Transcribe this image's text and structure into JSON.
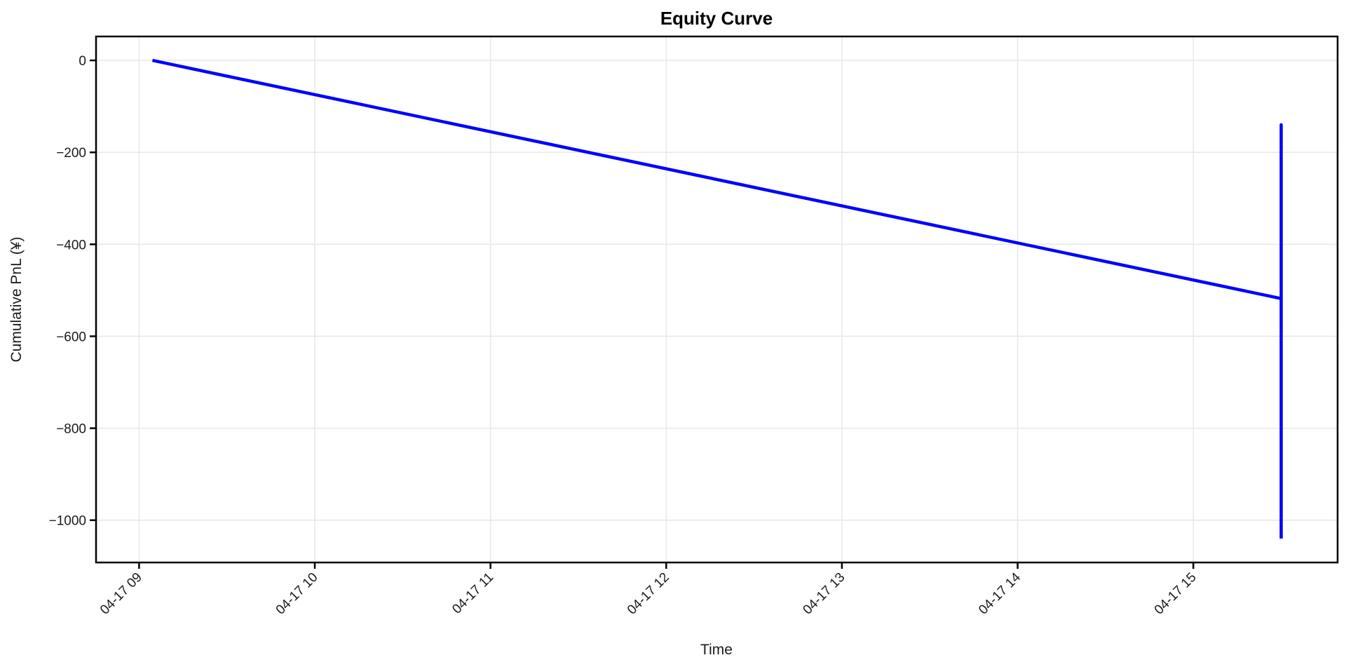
{
  "chart_data": {
    "type": "line",
    "title": "Equity Curve",
    "xlabel": "Time",
    "ylabel": "Cumulative PnL (¥)",
    "grid": true,
    "legend_position": "none",
    "x_tick_rotation_deg": 45,
    "xlim_hours": [
      8.755,
      15.821
    ],
    "ylim": [
      -1092,
      52
    ],
    "x_ticks": [
      {
        "hour": 9,
        "label": "04-17 09"
      },
      {
        "hour": 10,
        "label": "04-17 10"
      },
      {
        "hour": 11,
        "label": "04-17 11"
      },
      {
        "hour": 12,
        "label": "04-17 12"
      },
      {
        "hour": 13,
        "label": "04-17 13"
      },
      {
        "hour": 14,
        "label": "04-17 14"
      },
      {
        "hour": 15,
        "label": "04-17 15"
      }
    ],
    "y_ticks": [
      {
        "value": 0,
        "label": "0"
      },
      {
        "value": -200,
        "label": "−200"
      },
      {
        "value": -400,
        "label": "−400"
      },
      {
        "value": -600,
        "label": "−600"
      },
      {
        "value": -800,
        "label": "−800"
      },
      {
        "value": -1000,
        "label": "−1000"
      }
    ],
    "series": [
      {
        "name": "Cumulative PnL",
        "color": "#0000ff",
        "points": [
          {
            "time": "04-17 09:05",
            "hour": 9.076,
            "value": 0
          },
          {
            "time": "04-17 15:30",
            "hour": 15.5,
            "value": -518
          },
          {
            "time": "04-17 15:30",
            "hour": 15.5,
            "value": -140
          },
          {
            "time": "04-17 15:30",
            "hour": 15.5,
            "value": -1040
          }
        ]
      }
    ],
    "colors": {
      "line": "#0000ff",
      "grid": "#e9e9e9",
      "spine": "#000000",
      "text": "#1a1a1a",
      "background": "#ffffff"
    }
  }
}
